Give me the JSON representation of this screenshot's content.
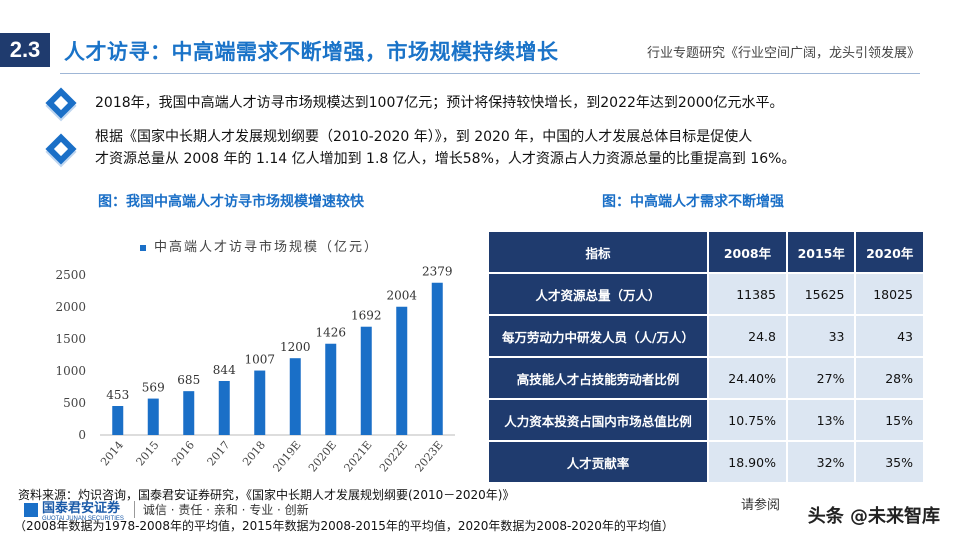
{
  "header": {
    "section_number": "2.3",
    "title": "人才访寻：中高端需求不断增强，市场规模持续增长",
    "report_name": "行业专题研究《行业空间广阔，龙头引领发展》"
  },
  "bullets": [
    "2018年，我国中高端人才访寻市场规模达到1007亿元；预计将保持较快增长，到2022年达到2000亿元水平。",
    "根据《国家中长期人才发展规划纲要（2010-2020 年）》，到 2020 年，中国的人才发展总体目标是促使人",
    "才资源总量从 2008 年的 1.14 亿人增加到 1.8 亿人，增长58%，人才资源占人力资源总量的比重提高到 16%。"
  ],
  "left_figure_title": "图：我国中高端人才访寻市场规模增速较快",
  "right_figure_title": "图：中高端人才需求不断增强",
  "chart_data": {
    "type": "bar",
    "legend": "中高端人才访寻市场规模（亿元）",
    "categories": [
      "2014",
      "2015",
      "2016",
      "2017",
      "2018",
      "2019E",
      "2020E",
      "2021E",
      "2022E",
      "2023E"
    ],
    "values": [
      453,
      569,
      685,
      844,
      1007,
      1200,
      1426,
      1692,
      2004,
      2379
    ],
    "y_ticks": [
      "0",
      "500",
      "1000",
      "1500",
      "2000",
      "2500"
    ],
    "ylim": [
      0,
      2500
    ],
    "bar_color": "#1a6fc7",
    "grid": false
  },
  "table": {
    "headers": [
      "指标",
      "2008年",
      "2015年",
      "2020年"
    ],
    "rows": [
      [
        "人才资源总量（万人）",
        "11385",
        "15625",
        "18025"
      ],
      [
        "每万劳动力中研发人员（人/万人）",
        "24.8",
        "33",
        "43"
      ],
      [
        "高技能人才占技能劳动者比例",
        "24.40%",
        "27%",
        "28%"
      ],
      [
        "人力资本投资占国内市场总值比例",
        "10.75%",
        "13%",
        "15%"
      ],
      [
        "人才贡献率",
        "18.90%",
        "32%",
        "35%"
      ]
    ]
  },
  "footer": {
    "source": "资料来源：灼识咨询，国泰君安证券研究，《国家中长期人才发展规划纲要(2010－2020年)》",
    "note": "（2008年数据为1978-2008年的平均值，2015年数据为2008-2015年的平均值，2020年数据为2008-2020年的平均值）",
    "logo_cn": "国泰君安证券",
    "logo_en": "GUOTAI JUNAN SECURITIES",
    "slogan": "诚信 · 责任 · 亲和 · 专业 · 创新",
    "right_text": "请参阅",
    "watermark": "头条 @未来智库"
  },
  "colors": {
    "navy": "#1f3b6e",
    "accent": "#1a6fc7",
    "cell": "#dce6f2"
  }
}
